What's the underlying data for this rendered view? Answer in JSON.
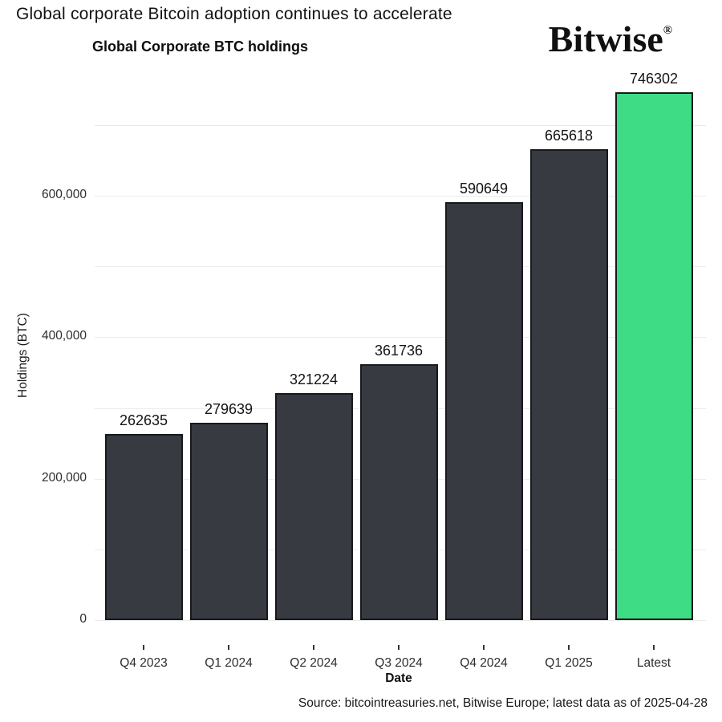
{
  "page": {
    "main_title": "Global corporate Bitcoin adoption continues to accelerate",
    "brand": {
      "name": "Bitwise",
      "registered_mark": "®"
    }
  },
  "chart_data": {
    "type": "bar",
    "title": "Global Corporate BTC holdings",
    "xlabel": "Date",
    "ylabel": "Holdings (BTC)",
    "categories": [
      "Q4 2023",
      "Q1 2024",
      "Q2 2024",
      "Q3 2024",
      "Q4 2024",
      "Q1 2025",
      "Latest"
    ],
    "values": [
      262635,
      279639,
      321224,
      361736,
      590649,
      665618,
      746302
    ],
    "value_labels": [
      "262635",
      "279639",
      "321224",
      "361736",
      "590649",
      "665618",
      "746302"
    ],
    "ylim": [
      0,
      760000
    ],
    "yticks": [
      0,
      200000,
      400000,
      600000
    ],
    "ytick_labels": [
      "0",
      "200,000",
      "400,000",
      "600,000"
    ],
    "gridline_step": 100000,
    "gridline_max": 700000,
    "grid": true,
    "legend": "none",
    "colors": {
      "bar_default": "#373b41",
      "bar_highlight": "#3edc85",
      "bar_border": "#17191d",
      "gridline": "#ebebeb"
    },
    "highlight_index": 6
  },
  "footer": {
    "source": "Source: bitcointreasuries.net, Bitwise Europe; latest data as of 2025-04-28"
  }
}
